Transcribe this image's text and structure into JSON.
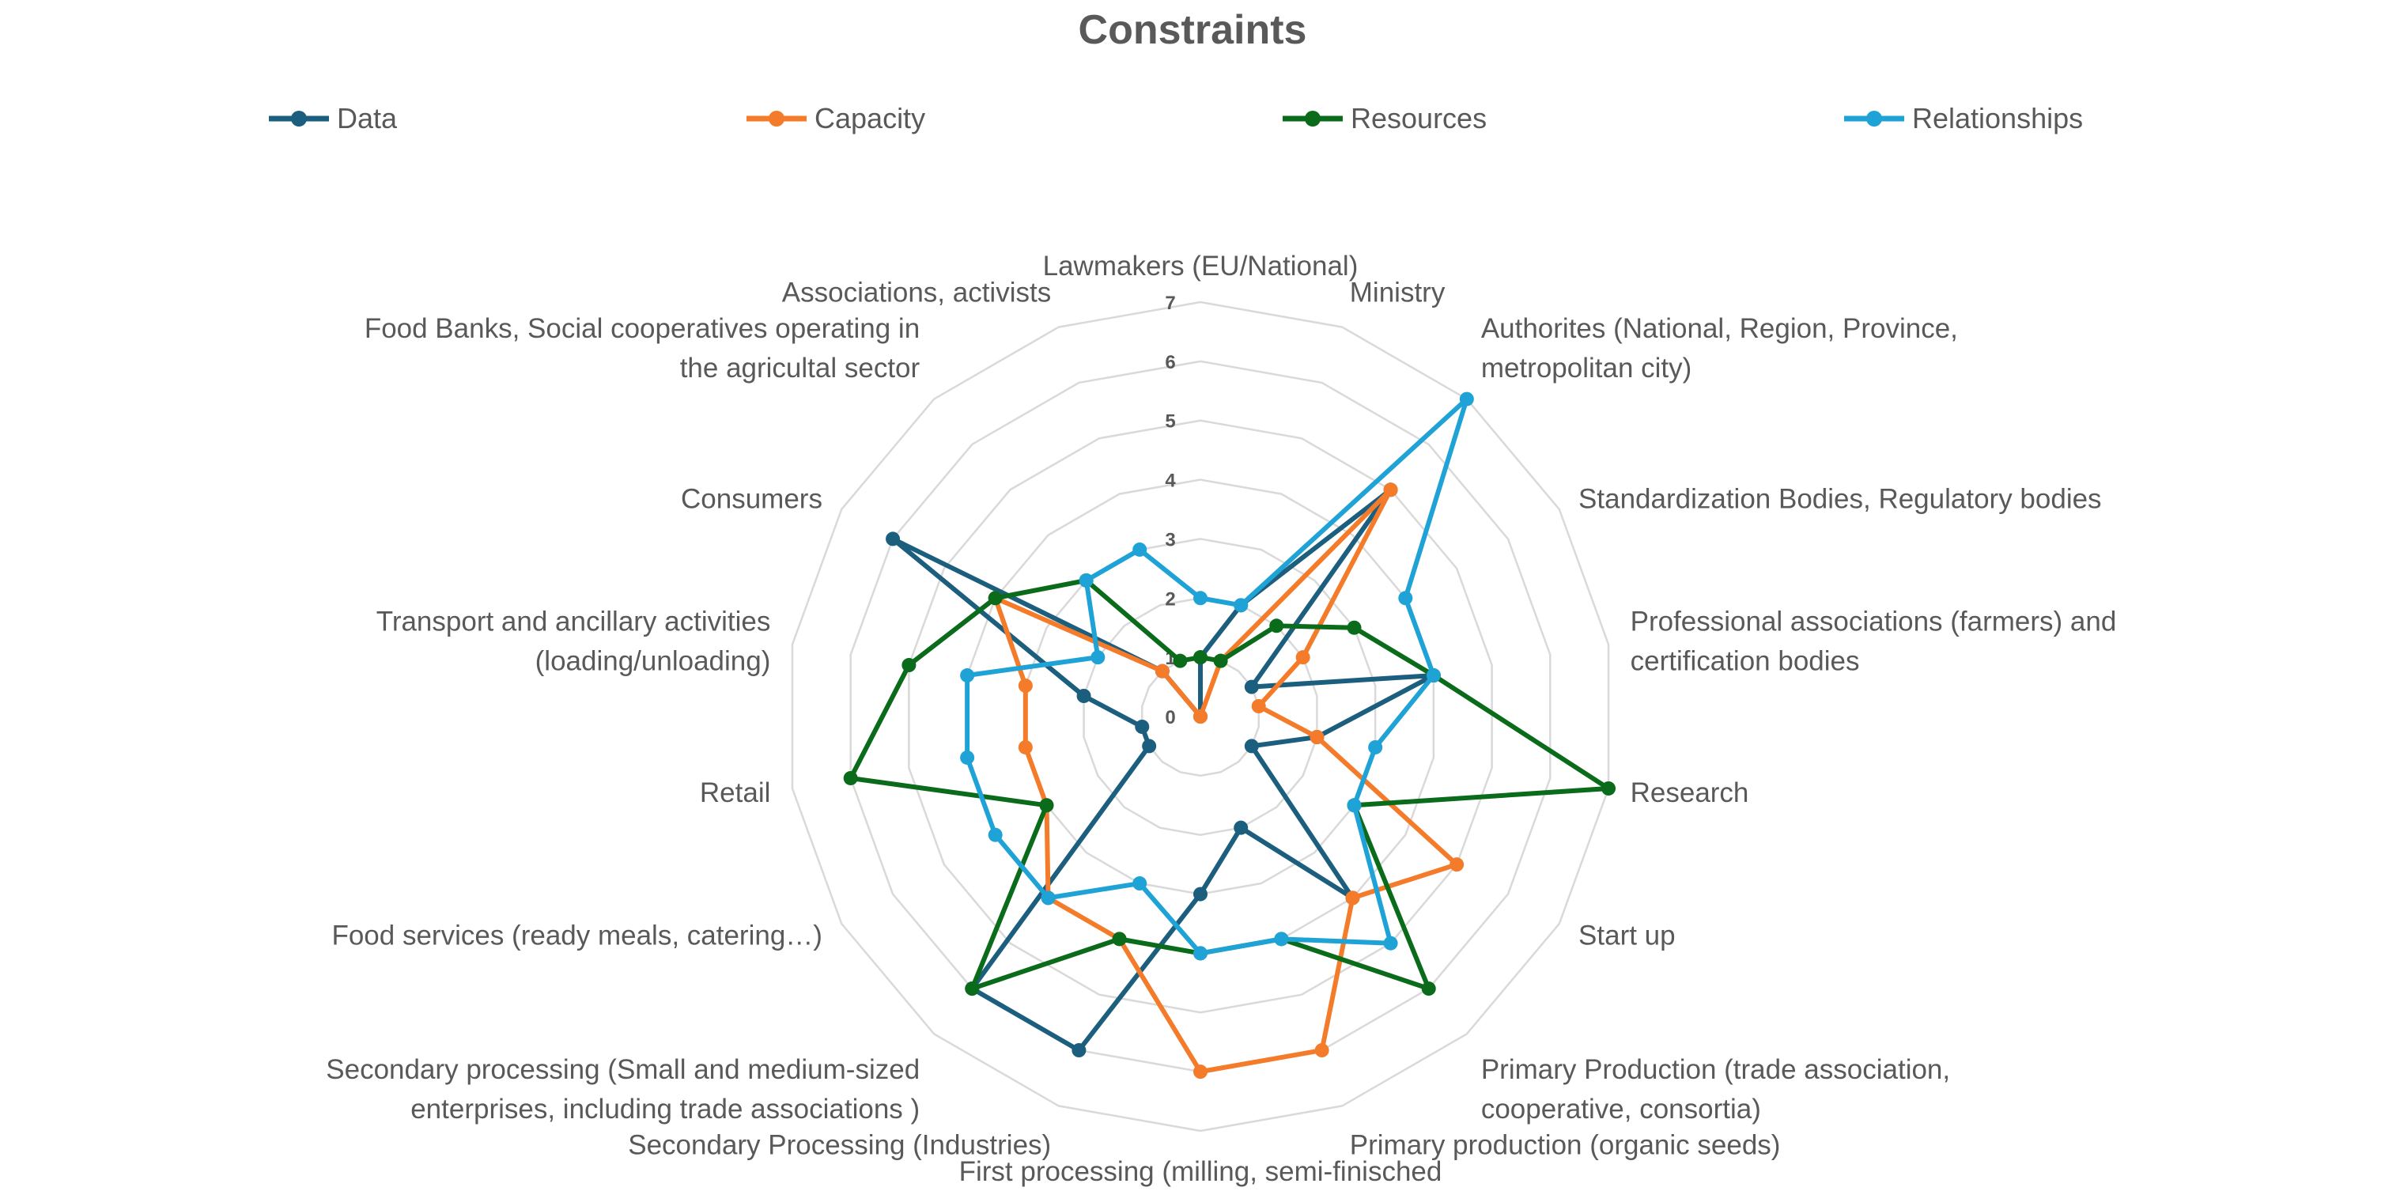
{
  "chart_data": {
    "type": "radar",
    "title": "Constraints",
    "legend_position": "top",
    "grid": true,
    "r_range": [
      0,
      7
    ],
    "r_ticks": [
      "0",
      "1",
      "2",
      "3",
      "4",
      "5",
      "6",
      "7"
    ],
    "categories": [
      "Lawmakers (EU/National)",
      "Ministry",
      "Authorites (National, Region, Province, metropolitan city)",
      "Standardization Bodies, Regulatory bodies",
      "Professional associations (farmers) and certification bodies",
      "Research",
      "Start up",
      "Primary Production (trade association, cooperative, consortia)",
      "Primary production (organic seeds)",
      "First processing (milling, semi-finisched products)",
      "Secondary Processing (Industries)",
      "Secondary processing (Small and medium-sized enterprises, including trade associations )",
      "Food services (ready meals, catering…)",
      "Retail",
      "Transport and ancillary activities (loading/unloading)",
      "Consumers",
      "Food Banks, Social cooperatives operating in the agricultal sector",
      "Associations, activists"
    ],
    "series": [
      {
        "name": "Data",
        "color": "#1B5E7E",
        "values": [
          1,
          2,
          5,
          1,
          4,
          2,
          1,
          4,
          2,
          3,
          6,
          6,
          1,
          1,
          2,
          6,
          1,
          0
        ]
      },
      {
        "name": "Capacity",
        "color": "#F47B2A",
        "values": [
          0,
          1,
          5,
          2,
          1,
          2,
          5,
          4,
          6,
          6,
          4,
          4,
          3,
          3,
          3,
          4,
          1,
          0
        ]
      },
      {
        "name": "Resources",
        "color": "#0A6B1A",
        "values": [
          1,
          1,
          2,
          3,
          4,
          7,
          3,
          6,
          4,
          4,
          4,
          6,
          3,
          6,
          5,
          4,
          3,
          1
        ]
      },
      {
        "name": "Relationships",
        "color": "#1FA3D6",
        "values": [
          2,
          2,
          7,
          4,
          4,
          3,
          3,
          5,
          4,
          4,
          3,
          4,
          4,
          4,
          4,
          2,
          3,
          3
        ]
      }
    ]
  }
}
